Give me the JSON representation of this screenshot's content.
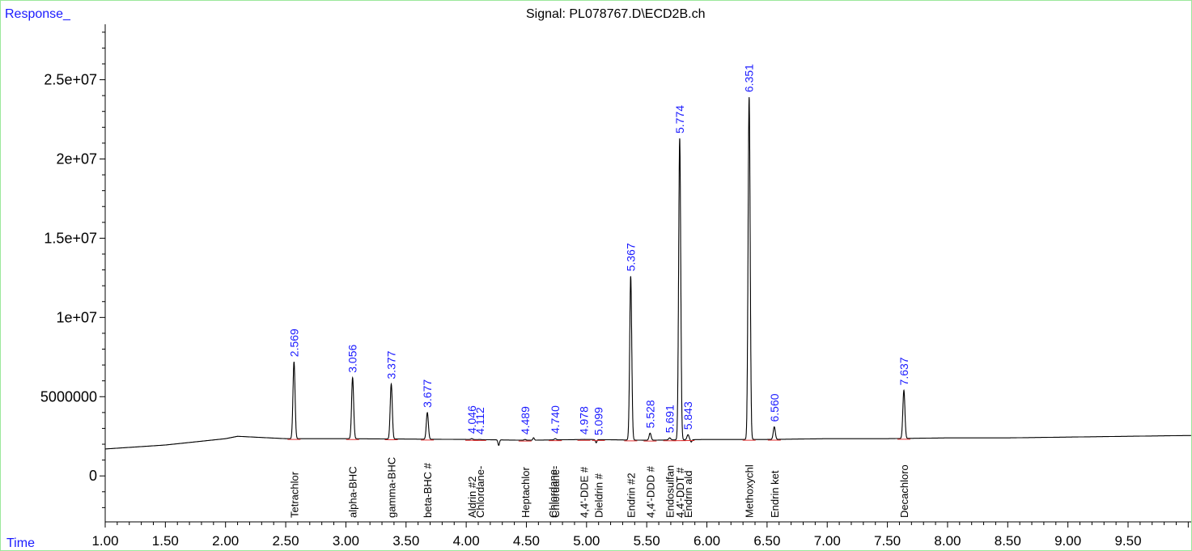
{
  "header": {
    "response_label": "Response_",
    "signal_label": "Signal: PL078767.D\\ECD2B.ch",
    "time_label": "Time"
  },
  "colors": {
    "trace": "#000000",
    "baseline_marks": "#e03030",
    "rt_text": "#1a1aff",
    "axis_label_blue": "#1a1aff",
    "frame": "#9be89b"
  },
  "chart_data": {
    "type": "line",
    "title": "Signal: PL078767.D\\ECD2B.ch",
    "xlabel": "Time",
    "ylabel": "Response_",
    "xlim": [
      1.0,
      10.0
    ],
    "ylim": [
      -2900000,
      28500000
    ],
    "x_ticks": [
      "1.00",
      "1.50",
      "2.00",
      "2.50",
      "3.00",
      "3.50",
      "4.00",
      "4.50",
      "5.00",
      "5.50",
      "6.00",
      "6.50",
      "7.00",
      "7.50",
      "8.00",
      "8.50",
      "9.00",
      "9.50"
    ],
    "y_ticks": [
      "0",
      "5000000",
      "1e+07",
      "1.5e+07",
      "2e+07",
      "2.5e+07"
    ],
    "y_tick_values": [
      0,
      5000000,
      10000000,
      15000000,
      20000000,
      25000000
    ],
    "baseline": [
      [
        1.0,
        1700000
      ],
      [
        1.5,
        1950000
      ],
      [
        2.0,
        2350000
      ],
      [
        2.1,
        2500000
      ],
      [
        2.5,
        2350000
      ],
      [
        3.0,
        2350000
      ],
      [
        4.0,
        2300000
      ],
      [
        4.5,
        2250000
      ],
      [
        5.0,
        2300000
      ],
      [
        5.5,
        2250000
      ],
      [
        6.0,
        2300000
      ],
      [
        6.5,
        2300000
      ],
      [
        7.0,
        2350000
      ],
      [
        7.5,
        2350000
      ],
      [
        8.0,
        2400000
      ],
      [
        8.5,
        2400000
      ],
      [
        9.0,
        2450000
      ],
      [
        9.5,
        2500000
      ],
      [
        10.0,
        2550000
      ]
    ],
    "peaks": [
      {
        "rt": 2.569,
        "rt_label": "2.569",
        "height": 7200000,
        "compound": "Tetrachlor"
      },
      {
        "rt": 3.056,
        "rt_label": "3.056",
        "height": 6200000,
        "compound": "alpha-BHC"
      },
      {
        "rt": 3.377,
        "rt_label": "3.377",
        "height": 5800000,
        "compound": "gamma-BHC"
      },
      {
        "rt": 3.677,
        "rt_label": "3.677",
        "height": 4000000,
        "compound": "beta-BHC #"
      },
      {
        "rt": 4.046,
        "rt_label": "4.046",
        "height": 2350000,
        "compound": "Aldrin #2"
      },
      {
        "rt": 4.112,
        "rt_label": "4.112",
        "height": 2300000,
        "compound": "Chlordane-"
      },
      {
        "rt": 4.489,
        "rt_label": "4.489",
        "height": 2300000,
        "compound": "Heptachlor"
      },
      {
        "rt": 4.74,
        "rt_label": "4.740",
        "height": 2350000,
        "compound": "Chlordane-"
      },
      {
        "rt": 4.978,
        "rt_label": "4.978",
        "height": 2300000,
        "compound": "4,4'-DDE #"
      },
      {
        "rt": 5.099,
        "rt_label": "5.099",
        "height": 2250000,
        "compound": "Dieldrin #"
      },
      {
        "rt": 5.367,
        "rt_label": "5.367",
        "height": 12600000,
        "compound": "Endrin #2"
      },
      {
        "rt": 5.528,
        "rt_label": "5.528",
        "height": 2700000,
        "compound": "4,4'-DDD #"
      },
      {
        "rt": 5.691,
        "rt_label": "5.691",
        "height": 2400000,
        "compound": "Endosulfan"
      },
      {
        "rt": 5.774,
        "rt_label": "5.774",
        "height": 21300000,
        "compound": "4,4'-DDT #"
      },
      {
        "rt": 5.843,
        "rt_label": "5.843",
        "height": 2600000,
        "compound": "Endrin ald"
      },
      {
        "rt": 6.351,
        "rt_label": "6.351",
        "height": 23900000,
        "compound": "Methoxychl"
      },
      {
        "rt": 6.56,
        "rt_label": "6.560",
        "height": 3100000,
        "compound": "Endrin ket"
      },
      {
        "rt": 7.637,
        "rt_label": "7.637",
        "height": 5400000,
        "compound": "Decachloro"
      }
    ],
    "extra_compound_labels": [
      {
        "rt": 4.718,
        "compound": "Chlordane-"
      }
    ],
    "dips": [
      {
        "x": 4.27,
        "depth": 350000
      },
      {
        "x": 4.56,
        "depth": -150000
      },
      {
        "x": 5.08,
        "depth": 200000
      },
      {
        "x": 5.87,
        "depth": 150000
      }
    ]
  }
}
